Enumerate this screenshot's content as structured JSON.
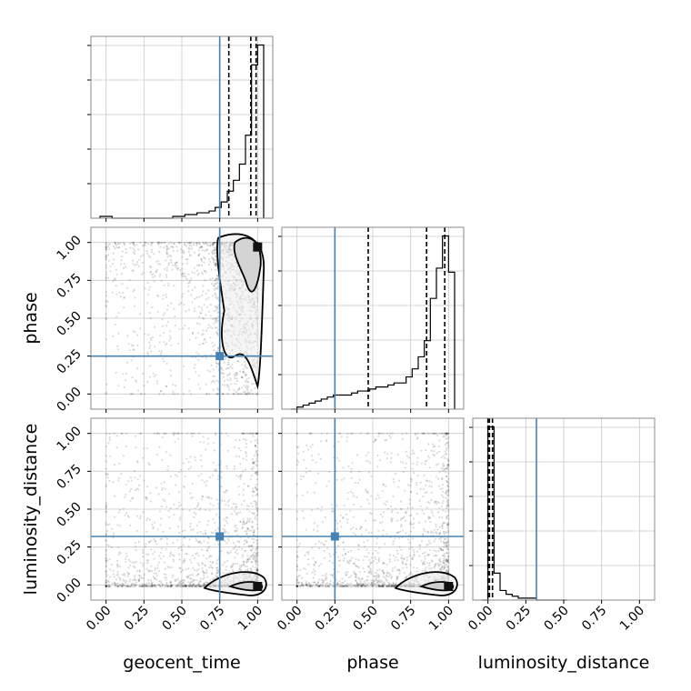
{
  "chart_data": {
    "type": "corner",
    "parameters": [
      "geocent_time",
      "phase",
      "luminosity_distance"
    ],
    "tick_labels": [
      "0.00",
      "0.25",
      "0.50",
      "0.75",
      "1.00"
    ],
    "axis_range": [
      -0.1,
      1.1
    ],
    "grid": true,
    "truths": {
      "geocent_time": 0.75,
      "phase": 0.25,
      "luminosity_distance": 0.32
    },
    "truth_color": "#4682b4",
    "histograms": {
      "geocent_time": {
        "bin_edges": [
          -0.04,
          0.0,
          0.04,
          0.08,
          0.12,
          0.16,
          0.2,
          0.24,
          0.28,
          0.32,
          0.36,
          0.4,
          0.44,
          0.48,
          0.52,
          0.56,
          0.6,
          0.64,
          0.68,
          0.72,
          0.76,
          0.8,
          0.84,
          0.88,
          0.92,
          0.96,
          1.0,
          1.04
        ],
        "counts": [
          1,
          1,
          0,
          0,
          0,
          0,
          0,
          0,
          0,
          0,
          0,
          0,
          1,
          1,
          2,
          2,
          3,
          3,
          4,
          6,
          9,
          15,
          21,
          30,
          46,
          85,
          96
        ],
        "quantiles": [
          0.81,
          0.955,
          0.99
        ]
      },
      "phase": {
        "bin_edges": [
          -0.04,
          0.0,
          0.04,
          0.08,
          0.12,
          0.16,
          0.2,
          0.24,
          0.28,
          0.32,
          0.36,
          0.4,
          0.44,
          0.48,
          0.52,
          0.56,
          0.6,
          0.64,
          0.68,
          0.72,
          0.76,
          0.8,
          0.84,
          0.88,
          0.92,
          0.96,
          1.0,
          1.04
        ],
        "counts": [
          0,
          1,
          2,
          3,
          4,
          5,
          6,
          7,
          7,
          7,
          8,
          9,
          9,
          10,
          11,
          11,
          12,
          13,
          13,
          16,
          20,
          26,
          34,
          55,
          70,
          86,
          68
        ],
        "quantiles": [
          0.47,
          0.855,
          0.975
        ]
      },
      "luminosity_distance": {
        "bin_edges": [
          -0.04,
          0.0,
          0.04,
          0.08,
          0.12,
          0.16,
          0.2,
          0.24,
          0.28,
          0.32,
          0.36,
          0.4,
          0.44,
          0.48,
          0.52
        ],
        "counts": [
          0,
          90,
          14,
          5,
          3,
          2,
          1,
          1,
          1,
          0,
          0,
          0,
          0,
          0
        ],
        "quantiles": [
          0.0,
          0.01,
          0.03
        ]
      }
    }
  }
}
